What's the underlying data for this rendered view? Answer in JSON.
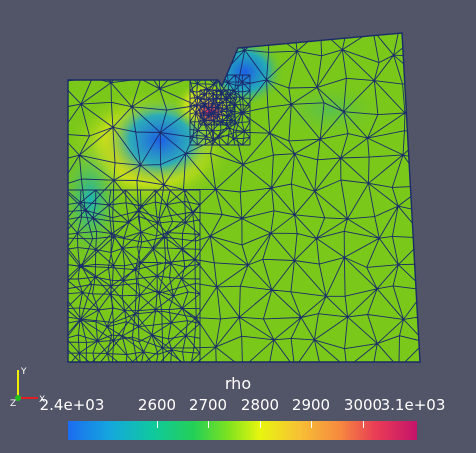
{
  "scalar_bar": {
    "title": "rho",
    "tick_labels": [
      "2.4e+03",
      "2600",
      "2700",
      "2800",
      "2900",
      "3000",
      "3.1e+03"
    ],
    "tick_values": [
      2400,
      2600,
      2700,
      2800,
      2900,
      3000,
      3100
    ],
    "range": [
      2400,
      3100
    ]
  },
  "orientation_axes": {
    "labels": [
      "X",
      "Y",
      "Z"
    ]
  },
  "colors": {
    "background": "#525467",
    "mesh_lines": "#1a2a6a",
    "dominant_field": "#7ac81a"
  }
}
